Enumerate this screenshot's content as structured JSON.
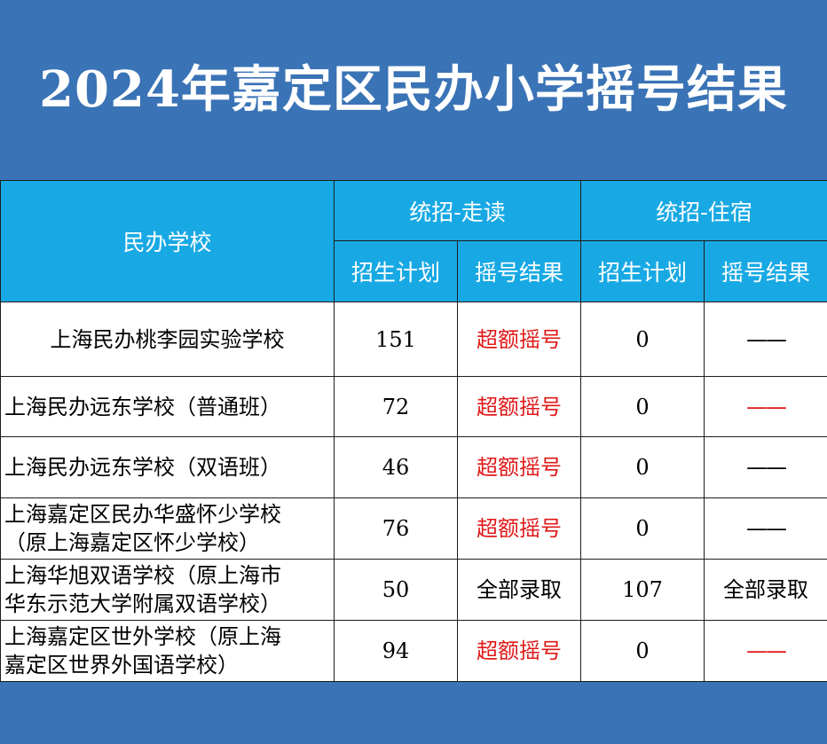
{
  "title": "2024年嘉定区民办小学摇号结果",
  "header": {
    "school_col": "民办学校",
    "group_day": "统招-走读",
    "group_boarding": "统招-住宿",
    "plan": "招生计划",
    "result": "摇号结果"
  },
  "rows": [
    {
      "name_line1": "上海民办桃李园实验学校",
      "name_line2": "",
      "day_plan": "151",
      "day_result": "超额摇号",
      "board_plan": "0",
      "board_result": "——"
    },
    {
      "name_line1": "上海民办远东学校（普通班）",
      "name_line2": "",
      "day_plan": "72",
      "day_result": "超额摇号",
      "board_plan": "0",
      "board_result": "——"
    },
    {
      "name_line1": "上海民办远东学校（双语班）",
      "name_line2": "",
      "day_plan": "46",
      "day_result": "超额摇号",
      "board_plan": "0",
      "board_result": "——"
    },
    {
      "name_line1": "上海嘉定区民办华盛怀少学校",
      "name_line2": "（原上海嘉定区怀少学校）",
      "day_plan": "76",
      "day_result": "超额摇号",
      "board_plan": "0",
      "board_result": "——"
    },
    {
      "name_line1": "上海华旭双语学校（原上海市",
      "name_line2": "华东示范大学附属双语学校）",
      "day_plan": "50",
      "day_result": "全部录取",
      "board_plan": "107",
      "board_result": "全部录取"
    },
    {
      "name_line1": "上海嘉定区世外学校（原上海",
      "name_line2": "嘉定区世界外国语学校）",
      "day_plan": "94",
      "day_result": "超额摇号",
      "board_plan": "0",
      "board_result": "——"
    }
  ],
  "colors": {
    "background": "#3a73b6",
    "header": "#18a9e4",
    "highlight_red": "#e01818"
  }
}
